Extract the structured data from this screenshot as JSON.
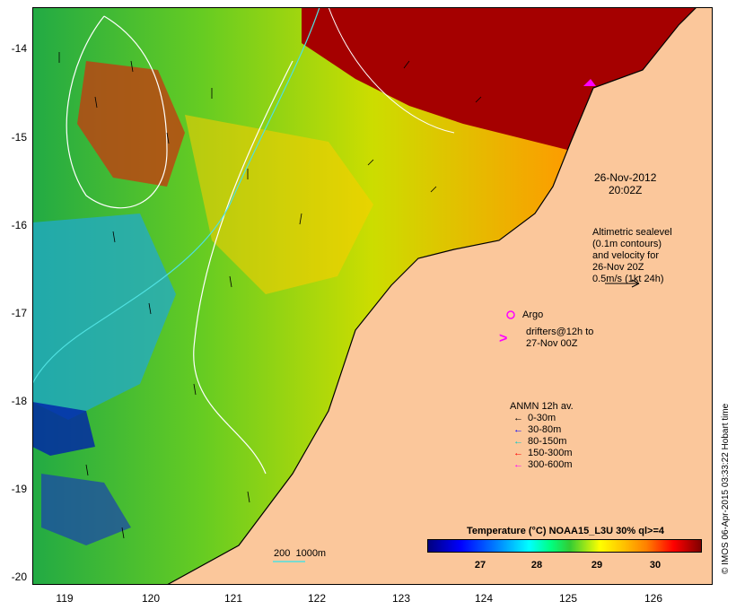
{
  "map": {
    "y_ticks": [
      "-14",
      "-15",
      "-16",
      "-17",
      "-18",
      "-19",
      "-20"
    ],
    "x_ticks": [
      "119",
      "120",
      "121",
      "122",
      "123",
      "124",
      "125",
      "126"
    ],
    "colors": {
      "land": "#fbc79b",
      "sea_hot": "#a50000",
      "coast": "#000000",
      "contour_white": "#ffffff",
      "contour_cyan": "#4fe0e0"
    }
  },
  "annotations": {
    "timestamp_date": "26-Nov-2012",
    "timestamp_time": "20:02Z",
    "altimetric": "Altimetric sealevel\n(0.1m contours)\nand velocity for\n26-Nov 20Z\n0.5m/s (1kt 24h)",
    "argo": "Argo",
    "drifters": "drifters@12h to\n27-Nov 00Z",
    "isobath": "200  1000m"
  },
  "anmn_legend": {
    "title": "ANMN 12h av.",
    "items": [
      {
        "label": "0-30m",
        "color": "#000000"
      },
      {
        "label": "30-80m",
        "color": "#0000ff"
      },
      {
        "label": "80-150m",
        "color": "#00c8c8"
      },
      {
        "label": "150-300m",
        "color": "#ff0000"
      },
      {
        "label": "300-600m",
        "color": "#ff00ff"
      }
    ]
  },
  "colorbar": {
    "title": "Temperature (°C) NOAA15_L3U 30% ql>=4",
    "ticks": [
      "27",
      "28",
      "29",
      "30"
    ]
  },
  "credit": "© IMOS 06-Apr-2015 03:33:22 Hobart time"
}
